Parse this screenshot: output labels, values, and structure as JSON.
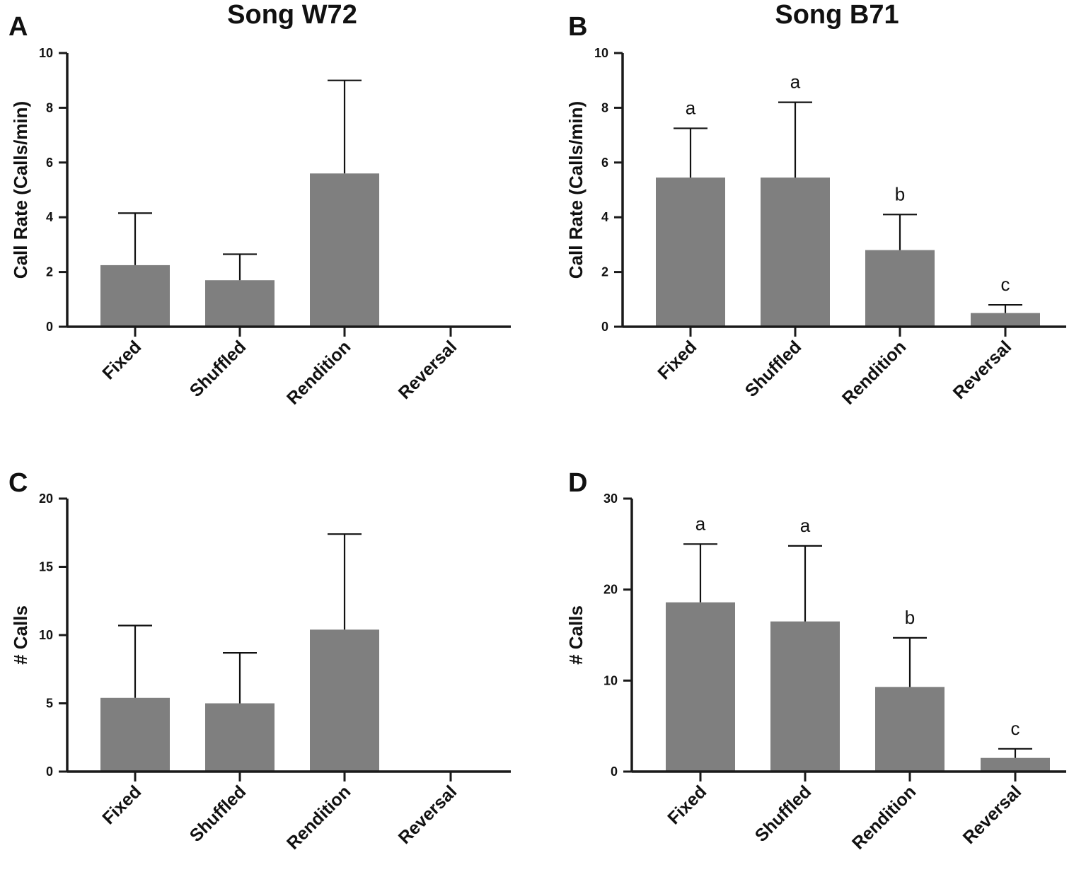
{
  "titles": {
    "left": "Song W72",
    "right": "Song B71"
  },
  "chart_data": [
    {
      "panel": "A",
      "type": "bar",
      "categories": [
        "Fixed",
        "Shuffled",
        "Rendition",
        "Reversal"
      ],
      "values": [
        2.25,
        1.7,
        5.6,
        0
      ],
      "error_upper": [
        4.15,
        2.65,
        9.0,
        null
      ],
      "significance": [],
      "ylabel": "Call Rate (Calls/min)",
      "ylim": [
        0,
        10
      ],
      "yticks": [
        0,
        2,
        4,
        6,
        8,
        10
      ],
      "colors": {
        "bar": "#7f7f7f"
      }
    },
    {
      "panel": "B",
      "type": "bar",
      "categories": [
        "Fixed",
        "Shuffled",
        "Rendition",
        "Reversal"
      ],
      "values": [
        5.45,
        5.45,
        2.8,
        0.5
      ],
      "error_upper": [
        7.25,
        8.2,
        4.1,
        0.8
      ],
      "significance": [
        "a",
        "a",
        "b",
        "c"
      ],
      "ylabel": "Call Rate (Calls/min)",
      "ylim": [
        0,
        10
      ],
      "yticks": [
        0,
        2,
        4,
        6,
        8,
        10
      ],
      "colors": {
        "bar": "#7f7f7f"
      }
    },
    {
      "panel": "C",
      "type": "bar",
      "categories": [
        "Fixed",
        "Shuffled",
        "Rendition",
        "Reversal"
      ],
      "values": [
        5.4,
        5.0,
        10.4,
        0
      ],
      "error_upper": [
        10.7,
        8.7,
        17.4,
        null
      ],
      "significance": [],
      "ylabel": "# Calls",
      "ylim": [
        0,
        20
      ],
      "yticks": [
        0,
        5,
        10,
        15,
        20
      ],
      "colors": {
        "bar": "#7f7f7f"
      }
    },
    {
      "panel": "D",
      "type": "bar",
      "categories": [
        "Fixed",
        "Shuffled",
        "Rendition",
        "Reversal"
      ],
      "values": [
        18.6,
        16.5,
        9.3,
        1.5
      ],
      "error_upper": [
        25.0,
        24.8,
        14.7,
        2.5
      ],
      "significance": [
        "a",
        "a",
        "b",
        "c"
      ],
      "ylabel": "# Calls",
      "ylim": [
        0,
        30
      ],
      "yticks": [
        0,
        10,
        20,
        30
      ],
      "colors": {
        "bar": "#7f7f7f"
      }
    }
  ]
}
